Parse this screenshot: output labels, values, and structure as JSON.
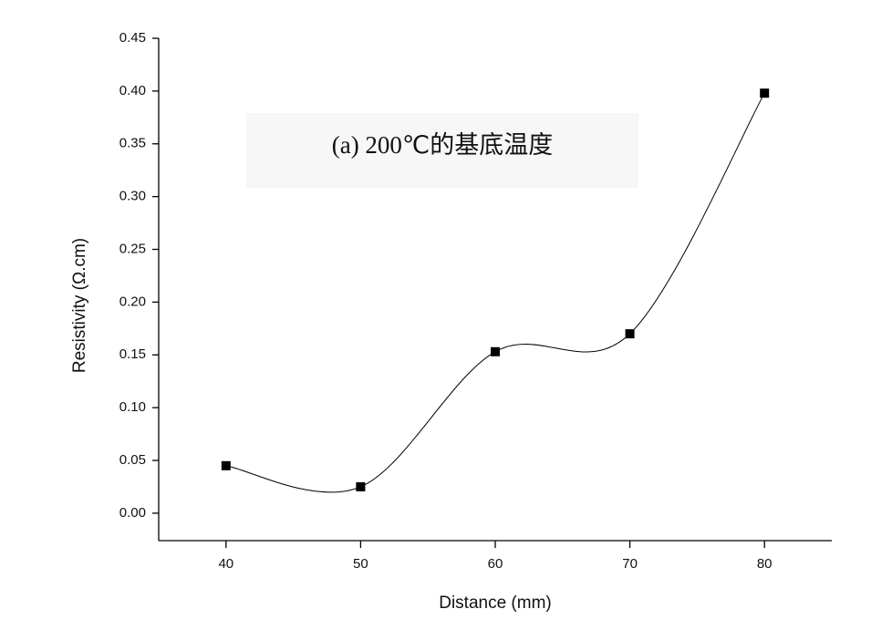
{
  "chart_data": {
    "type": "scatter",
    "annotation": "(a) 200℃的基底温度",
    "x_label": "Distance (mm)",
    "y_label": "Resistivity (Ω.cm)",
    "x": [
      40,
      50,
      60,
      70,
      80
    ],
    "series": [
      {
        "color": "#000000",
        "values": [
          0.045,
          0.025,
          0.153,
          0.17,
          0.398
        ]
      }
    ],
    "xlim": [
      35,
      85
    ],
    "xticks": [
      40,
      50,
      60,
      70,
      80
    ],
    "ylim": [
      -0.026,
      0.45
    ],
    "yticks": [
      {
        "value": 0,
        "label": "0.00"
      },
      {
        "value": 0.05,
        "label": "0.05"
      },
      {
        "value": 0.1,
        "label": "0.10"
      },
      {
        "value": 0.15,
        "label": "0.15"
      },
      {
        "value": 0.2,
        "label": "0.20"
      },
      {
        "value": 0.25,
        "label": "0.25"
      },
      {
        "value": 0.3,
        "label": "0.30"
      },
      {
        "value": 0.35,
        "label": "0.35"
      },
      {
        "value": 0.4,
        "label": "0.40"
      },
      {
        "value": 0.45,
        "label": "0.45"
      }
    ],
    "smooth_line": true
  }
}
